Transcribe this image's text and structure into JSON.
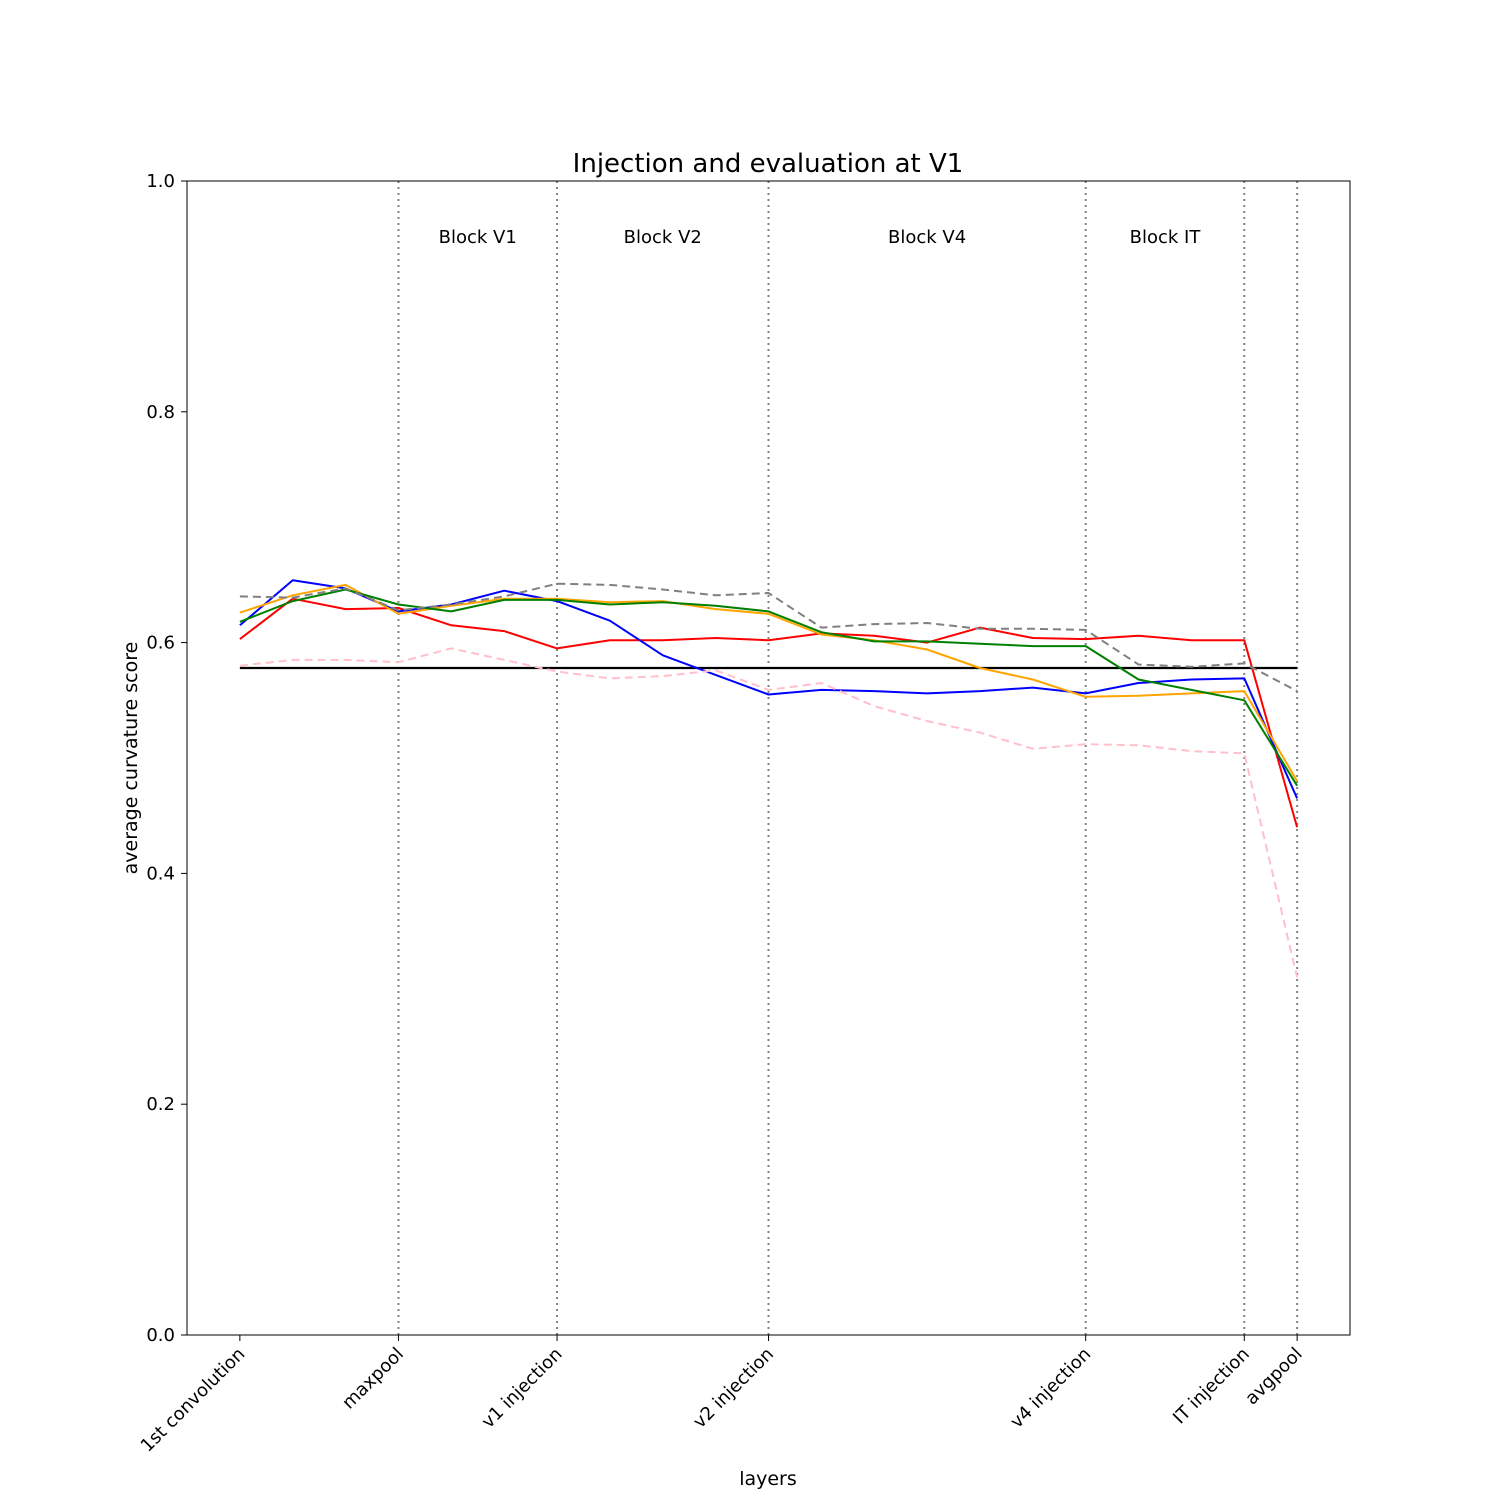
{
  "chart_data": {
    "type": "line",
    "title": "Injection and evaluation at V1",
    "xlabel": "layers",
    "ylabel": "average curvature score",
    "ylim": [
      0,
      1
    ],
    "xlim": [
      -1,
      21
    ],
    "grid": false,
    "legend": "none",
    "yticks": [
      {
        "value": 0.0,
        "label": "0.0"
      },
      {
        "value": 0.2,
        "label": "0.2"
      },
      {
        "value": 0.4,
        "label": "0.4"
      },
      {
        "value": 0.6,
        "label": "0.6"
      },
      {
        "value": 0.8,
        "label": "0.8"
      },
      {
        "value": 1.0,
        "label": "1.0"
      }
    ],
    "xticks": [
      {
        "index": 0,
        "label": "1st convolution"
      },
      {
        "index": 3,
        "label": "maxpool"
      },
      {
        "index": 6,
        "label": "v1 injection"
      },
      {
        "index": 10,
        "label": "v2 injection"
      },
      {
        "index": 16,
        "label": "v4 injection"
      },
      {
        "index": 19,
        "label": "IT injection"
      },
      {
        "index": 20,
        "label": "avgpool"
      }
    ],
    "vlines": [
      3,
      6,
      10,
      16,
      19,
      20
    ],
    "blocks": [
      {
        "label": "Block V1",
        "x": 4.5
      },
      {
        "label": "Block V2",
        "x": 8
      },
      {
        "label": "Block V4",
        "x": 13
      },
      {
        "label": "Block IT",
        "x": 17.5
      }
    ],
    "x": [
      0,
      1,
      2,
      3,
      4,
      5,
      6,
      7,
      8,
      9,
      10,
      11,
      12,
      13,
      14,
      15,
      16,
      17,
      18,
      19,
      20
    ],
    "baseline": {
      "value": 0.578,
      "x_range": [
        0,
        20
      ],
      "color": "#000000"
    },
    "series": [
      {
        "color": "#ff0000",
        "dash": false,
        "values": [
          0.603,
          0.638,
          0.629,
          0.63,
          0.615,
          0.61,
          0.595,
          0.602,
          0.602,
          0.604,
          0.602,
          0.608,
          0.606,
          0.6,
          0.613,
          0.604,
          0.603,
          0.606,
          0.602,
          0.602,
          0.44
        ]
      },
      {
        "color": "#0000ff",
        "dash": false,
        "values": [
          0.615,
          0.654,
          0.647,
          0.627,
          0.633,
          0.645,
          0.636,
          0.619,
          0.589,
          0.572,
          0.555,
          0.559,
          0.558,
          0.556,
          0.558,
          0.561,
          0.556,
          0.565,
          0.568,
          0.569,
          0.465
        ]
      },
      {
        "color": "#ffa500",
        "dash": false,
        "values": [
          0.626,
          0.641,
          0.65,
          0.625,
          0.632,
          0.638,
          0.638,
          0.635,
          0.636,
          0.629,
          0.625,
          0.607,
          0.602,
          0.594,
          0.578,
          0.568,
          0.553,
          0.554,
          0.556,
          0.558,
          0.48
        ]
      },
      {
        "color": "#008000",
        "dash": false,
        "values": [
          0.618,
          0.636,
          0.646,
          0.633,
          0.627,
          0.637,
          0.637,
          0.633,
          0.635,
          0.632,
          0.627,
          0.609,
          0.601,
          0.601,
          0.599,
          0.597,
          0.597,
          0.568,
          0.559,
          0.55,
          0.476
        ]
      },
      {
        "color": "#808080",
        "dash": true,
        "values": [
          0.64,
          0.639,
          0.647,
          0.628,
          0.633,
          0.64,
          0.651,
          0.65,
          0.646,
          0.641,
          0.643,
          0.613,
          0.616,
          0.617,
          0.612,
          0.612,
          0.611,
          0.581,
          0.579,
          0.582,
          0.558
        ]
      },
      {
        "color": "#ffc0cb",
        "dash": true,
        "values": [
          0.58,
          0.585,
          0.585,
          0.583,
          0.595,
          0.585,
          0.575,
          0.569,
          0.571,
          0.576,
          0.559,
          0.565,
          0.545,
          0.532,
          0.522,
          0.508,
          0.512,
          0.511,
          0.506,
          0.504,
          0.31
        ]
      }
    ]
  }
}
